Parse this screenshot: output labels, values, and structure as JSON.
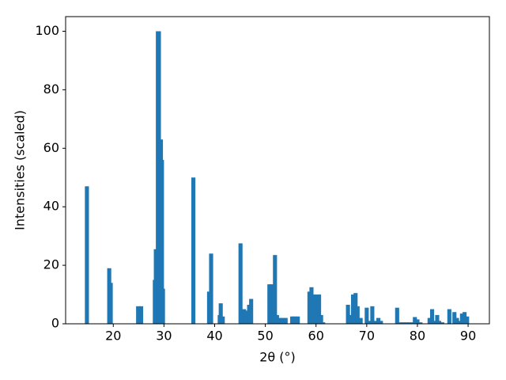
{
  "chart_data": {
    "type": "bar",
    "xlabel": "2θ (°)",
    "ylabel": "Intensities (scaled)",
    "x": [
      14.8,
      19.2,
      19.5,
      24.9,
      25.5,
      28.2,
      28.4,
      28.8,
      29.0,
      29.4,
      29.6,
      29.8,
      35.8,
      38.9,
      39.3,
      41.0,
      41.2,
      41.6,
      45.1,
      45.8,
      46.2,
      46.8,
      47.2,
      50.8,
      51.2,
      51.9,
      52.3,
      52.8,
      53.4,
      54.0,
      55.3,
      55.8,
      56.4,
      58.7,
      59.1,
      59.6,
      60.1,
      60.6,
      61.0,
      61.4,
      66.3,
      66.7,
      67.3,
      67.8,
      68.2,
      68.8,
      70.0,
      70.5,
      71.1,
      71.6,
      72.3,
      72.8,
      76.0,
      76.6,
      77.2,
      77.8,
      78.4,
      79.0,
      79.5,
      80.0,
      80.6,
      82.4,
      82.9,
      83.3,
      83.9,
      84.3,
      84.9,
      86.3,
      87.3,
      87.8,
      88.3,
      88.8,
      89.3,
      89.8
    ],
    "values": [
      47,
      19,
      14,
      6,
      6,
      15,
      25.5,
      100,
      100,
      63,
      56,
      12,
      50,
      11,
      24,
      3,
      7,
      2.5,
      27.5,
      5,
      4.5,
      6.5,
      8.5,
      13.5,
      13.5,
      23.5,
      3,
      2,
      2,
      2,
      2.5,
      2.5,
      2.5,
      11,
      12.5,
      10,
      10,
      10,
      3,
      0.5,
      6.5,
      3,
      10,
      10.5,
      6,
      2,
      5.5,
      1,
      6,
      1,
      2,
      1,
      5.5,
      0.5,
      0.5,
      0.5,
      0.5,
      0.5,
      2.3,
      1.5,
      0.5,
      2,
      5,
      1,
      3,
      1,
      0.5,
      5,
      4,
      2,
      1,
      3.5,
      4,
      2.5
    ],
    "color": "#1f77b4",
    "xlim": [
      10.6,
      94.2
    ],
    "xticks": [
      20,
      30,
      40,
      50,
      60,
      70,
      80,
      90
    ],
    "ylim": [
      0,
      105
    ],
    "yticks": [
      0,
      20,
      40,
      60,
      80,
      100
    ]
  }
}
